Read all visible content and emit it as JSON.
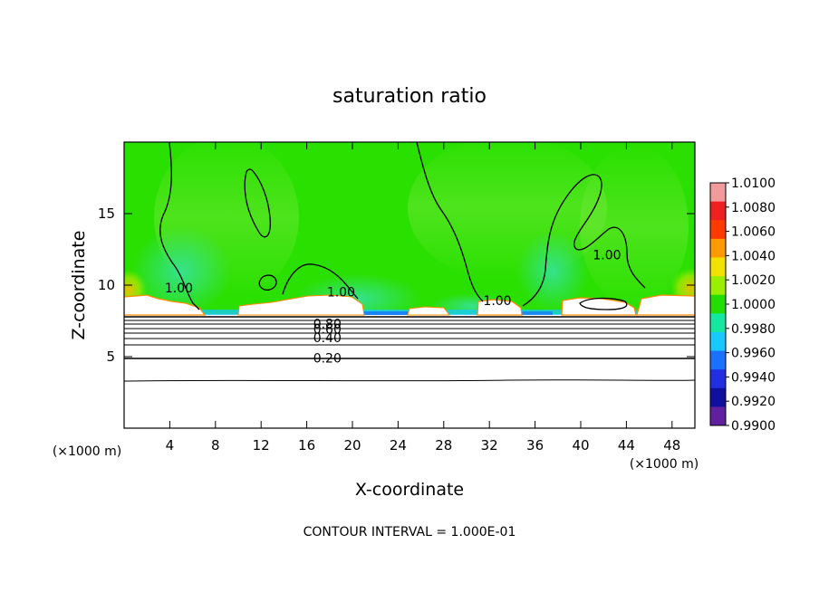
{
  "chart_data": {
    "type": "heatmap",
    "title": "saturation ratio",
    "xlabel": "X-coordinate",
    "ylabel": "Z-coordinate",
    "x_units": "(×1000 m)",
    "x_units_right": "(×1000 m)",
    "xlim": [
      0,
      50
    ],
    "ylim": [
      0,
      20
    ],
    "x_ticks": [
      "4",
      "8",
      "12",
      "16",
      "20",
      "24",
      "28",
      "32",
      "36",
      "40",
      "44",
      "48"
    ],
    "y_ticks": [
      "5",
      "10",
      "15"
    ],
    "colorbar": {
      "min": 0.99,
      "max": 1.01,
      "labels": [
        "1.0100",
        "1.0080",
        "1.0060",
        "1.0040",
        "1.0020",
        "1.0000",
        "0.9980",
        "0.9960",
        "0.9940",
        "0.9920",
        "0.9900"
      ],
      "colors": [
        "#f39a9a",
        "#f02020",
        "#ff3a00",
        "#ff9a00",
        "#f2e200",
        "#9aee00",
        "#22dd00",
        "#14e8a0",
        "#18c8ff",
        "#1c70ff",
        "#2030e0",
        "#1010a0",
        "#6020a0"
      ]
    },
    "contour_labels": [
      {
        "text": "1.00",
        "x": 4.8,
        "z": 9.5
      },
      {
        "text": "1.00",
        "x": 19.0,
        "z": 9.2
      },
      {
        "text": "1.00",
        "x": 32.7,
        "z": 8.6
      },
      {
        "text": "1.00",
        "x": 42.3,
        "z": 11.8
      },
      {
        "text": "0.80",
        "x": 17.8,
        "z": 7.0
      },
      {
        "text": "0.60",
        "x": 17.8,
        "z": 6.6
      },
      {
        "text": "0.40",
        "x": 17.8,
        "z": 6.0
      },
      {
        "text": "0.20",
        "x": 17.8,
        "z": 4.6
      }
    ],
    "contour_interval_text": "CONTOUR INTERVAL = 1.000E-01",
    "grid": false
  }
}
